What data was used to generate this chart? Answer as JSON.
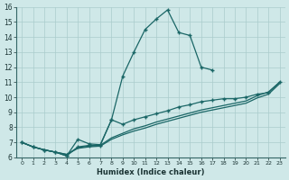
{
  "bg_color": "#cfe8e8",
  "grid_color": "#aacccc",
  "line_color": "#1a6666",
  "xlabel": "Humidex (Indice chaleur)",
  "xlim": [
    -0.5,
    23.5
  ],
  "ylim": [
    6,
    16
  ],
  "xticks": [
    0,
    1,
    2,
    3,
    4,
    5,
    6,
    7,
    8,
    9,
    10,
    11,
    12,
    13,
    14,
    15,
    16,
    17,
    18,
    19,
    20,
    21,
    22,
    23
  ],
  "yticks": [
    6,
    7,
    8,
    9,
    10,
    11,
    12,
    13,
    14,
    15,
    16
  ],
  "curve1_x": [
    0,
    1,
    2,
    3,
    4,
    5,
    6,
    7,
    8,
    9,
    10,
    11,
    12,
    13,
    14,
    15,
    16,
    17
  ],
  "curve1_y": [
    7.0,
    6.7,
    6.5,
    6.35,
    6.1,
    7.2,
    6.9,
    6.85,
    8.5,
    11.4,
    13.0,
    14.5,
    15.2,
    15.8,
    14.3,
    14.1,
    12.0,
    11.8
  ],
  "curve2_x": [
    0,
    1,
    2,
    3,
    4,
    5,
    6,
    7,
    8,
    9,
    10,
    11,
    12,
    13,
    14,
    15,
    16,
    17,
    18,
    19,
    20,
    21,
    22,
    23
  ],
  "curve2_y": [
    7.0,
    6.7,
    6.5,
    6.35,
    6.1,
    6.7,
    6.8,
    6.8,
    8.5,
    8.2,
    8.5,
    8.7,
    8.9,
    9.1,
    9.35,
    9.5,
    9.7,
    9.8,
    9.9,
    9.9,
    10.0,
    10.2,
    10.3,
    11.0
  ],
  "curve3_x": [
    0,
    1,
    2,
    3,
    4,
    5,
    6,
    7,
    8,
    9,
    10,
    11,
    12,
    13,
    14,
    15,
    16,
    17,
    18,
    19,
    20,
    21,
    22,
    23
  ],
  "curve3_y": [
    7.0,
    6.7,
    6.5,
    6.35,
    6.2,
    6.65,
    6.75,
    6.8,
    7.3,
    7.6,
    7.9,
    8.1,
    8.35,
    8.55,
    8.75,
    8.95,
    9.15,
    9.3,
    9.45,
    9.6,
    9.75,
    10.1,
    10.35,
    11.0
  ],
  "curve4_x": [
    0,
    1,
    2,
    3,
    4,
    5,
    6,
    7,
    8,
    9,
    10,
    11,
    12,
    13,
    14,
    15,
    16,
    17,
    18,
    19,
    20,
    21,
    22,
    23
  ],
  "curve4_y": [
    7.0,
    6.7,
    6.5,
    6.35,
    6.2,
    6.6,
    6.7,
    6.75,
    7.2,
    7.5,
    7.75,
    7.95,
    8.2,
    8.4,
    8.6,
    8.8,
    9.0,
    9.15,
    9.3,
    9.45,
    9.6,
    9.95,
    10.2,
    10.9
  ]
}
